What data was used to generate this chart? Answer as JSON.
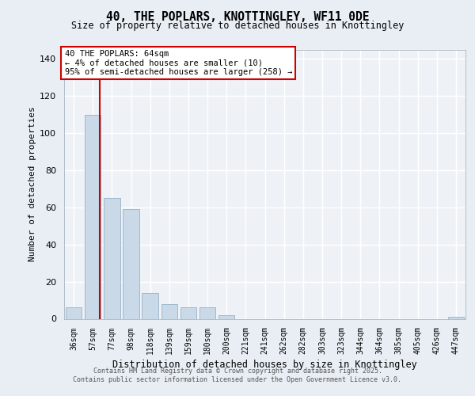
{
  "title1": "40, THE POPLARS, KNOTTINGLEY, WF11 0DE",
  "title2": "Size of property relative to detached houses in Knottingley",
  "xlabel": "Distribution of detached houses by size in Knottingley",
  "ylabel": "Number of detached properties",
  "bar_labels": [
    "36sqm",
    "57sqm",
    "77sqm",
    "98sqm",
    "118sqm",
    "139sqm",
    "159sqm",
    "180sqm",
    "200sqm",
    "221sqm",
    "241sqm",
    "262sqm",
    "282sqm",
    "303sqm",
    "323sqm",
    "344sqm",
    "364sqm",
    "385sqm",
    "405sqm",
    "426sqm",
    "447sqm"
  ],
  "bar_values": [
    6,
    110,
    65,
    59,
    14,
    8,
    6,
    6,
    2,
    0,
    0,
    0,
    0,
    0,
    0,
    0,
    0,
    0,
    0,
    0,
    1
  ],
  "bar_color": "#c9d9e8",
  "bar_edgecolor": "#a0b8cc",
  "annotation_line1": "40 THE POPLARS: 64sqm",
  "annotation_line2": "← 4% of detached houses are smaller (10)",
  "annotation_line3": "95% of semi-detached houses are larger (258) →",
  "annotation_box_facecolor": "#ffffff",
  "annotation_box_edgecolor": "#cc0000",
  "redline_x": 1.35,
  "ylim": [
    0,
    145
  ],
  "yticks": [
    0,
    20,
    40,
    60,
    80,
    100,
    120,
    140
  ],
  "bg_color": "#e8eef4",
  "plot_bg_color": "#eef2f7",
  "grid_color": "#ffffff",
  "footer1": "Contains HM Land Registry data © Crown copyright and database right 2025.",
  "footer2": "Contains public sector information licensed under the Open Government Licence v3.0."
}
